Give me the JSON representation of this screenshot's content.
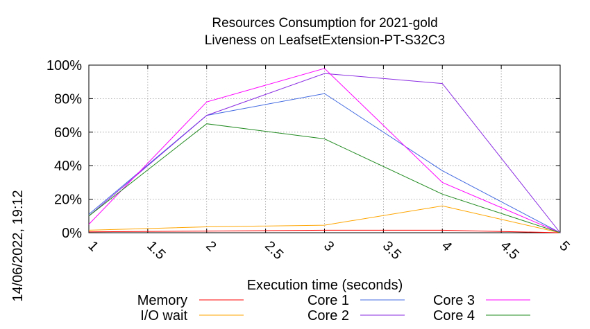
{
  "chart_data": {
    "type": "line",
    "title_line1": "Resources Consumption for 2021-gold",
    "title_line2": "Liveness on LeafsetExtension-PT-S32C3",
    "xlabel": "Execution time (seconds)",
    "ylabel": "",
    "timestamp": "14/06/2022, 19:12",
    "xlim": [
      1,
      5
    ],
    "ylim": [
      0,
      100
    ],
    "grid": true,
    "x_ticks": [
      {
        "value": 1,
        "label": "1"
      },
      {
        "value": 1.5,
        "label": "1.5"
      },
      {
        "value": 2,
        "label": "2"
      },
      {
        "value": 2.5,
        "label": "2.5"
      },
      {
        "value": 3,
        "label": "3"
      },
      {
        "value": 3.5,
        "label": "3.5"
      },
      {
        "value": 4,
        "label": "4"
      },
      {
        "value": 4.5,
        "label": "4.5"
      },
      {
        "value": 5,
        "label": "5"
      }
    ],
    "y_ticks": [
      {
        "value": 0,
        "label": "0%"
      },
      {
        "value": 20,
        "label": "20%"
      },
      {
        "value": 40,
        "label": "40%"
      },
      {
        "value": 60,
        "label": "60%"
      },
      {
        "value": 80,
        "label": "80%"
      },
      {
        "value": 100,
        "label": "100%"
      }
    ],
    "x": [
      1,
      2,
      3,
      4,
      5
    ],
    "legend_position": "bottom",
    "series": [
      {
        "name": "Memory",
        "color": "#ff0000",
        "values": [
          0.5,
          1,
          1.5,
          1.5,
          0
        ]
      },
      {
        "name": "I/O wait",
        "color": "#ffa500",
        "values": [
          1.5,
          3.5,
          4.5,
          16,
          0
        ]
      },
      {
        "name": "Core 1",
        "color": "#4169e1",
        "values": [
          11,
          70,
          83,
          37,
          0
        ]
      },
      {
        "name": "Core 2",
        "color": "#8a2be2",
        "values": [
          10,
          70,
          95,
          89,
          0
        ]
      },
      {
        "name": "Core 3",
        "color": "#ff00ff",
        "values": [
          5,
          78,
          98,
          30,
          0
        ]
      },
      {
        "name": "Core 4",
        "color": "#228b22",
        "values": [
          10,
          65,
          56,
          23,
          0
        ]
      }
    ]
  }
}
